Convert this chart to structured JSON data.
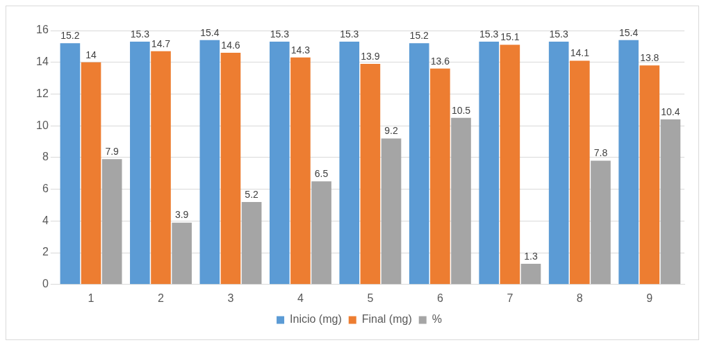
{
  "chart_data": {
    "type": "bar",
    "categories": [
      "1",
      "2",
      "3",
      "4",
      "5",
      "6",
      "7",
      "8",
      "9"
    ],
    "series": [
      {
        "name": "Inicio (mg)",
        "color": "#5b9bd5",
        "values": [
          15.2,
          15.3,
          15.4,
          15.3,
          15.3,
          15.2,
          15.3,
          15.3,
          15.4
        ]
      },
      {
        "name": "Final (mg)",
        "color": "#ed7d31",
        "values": [
          14,
          14.7,
          14.6,
          14.3,
          13.9,
          13.6,
          15.1,
          14.1,
          13.8
        ]
      },
      {
        "name": "%",
        "color": "#a5a5a5",
        "values": [
          7.9,
          3.9,
          5.2,
          6.5,
          9.2,
          10.5,
          1.3,
          7.8,
          10.4
        ]
      }
    ],
    "ylim": [
      0,
      16
    ],
    "yticks": [
      0,
      2,
      4,
      6,
      8,
      10,
      12,
      14,
      16
    ],
    "grid": "y",
    "legend": "bottom",
    "data_labels": true
  }
}
